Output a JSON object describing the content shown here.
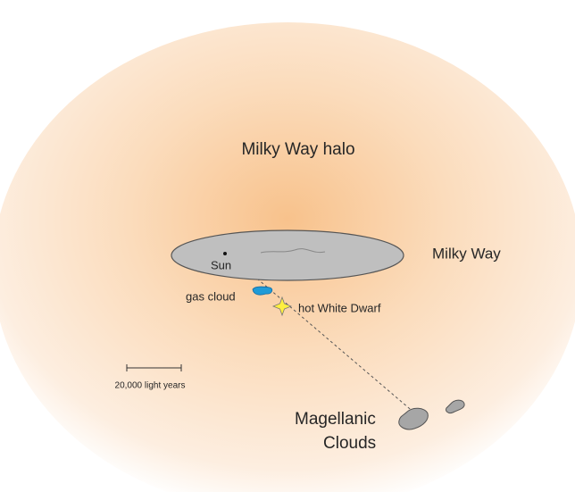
{
  "diagram": {
    "halo_label": "Milky Way halo",
    "disk_label": "Milky Way",
    "sun_label": "Sun",
    "gas_cloud_label": "gas cloud",
    "white_dwarf_label": "hot White Dwarf",
    "scale_label": "20,000 light years",
    "magellanic_label": [
      "Magellanic",
      "Clouds"
    ]
  }
}
